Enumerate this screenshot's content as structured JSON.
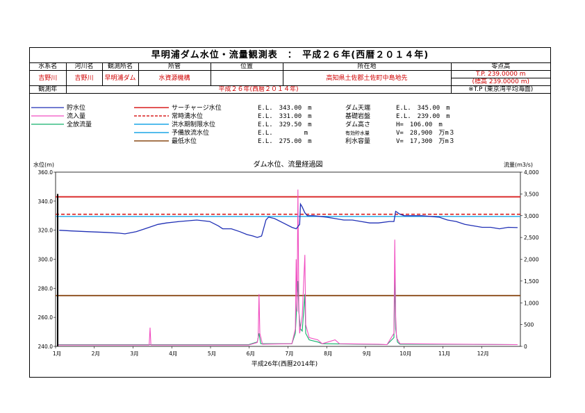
{
  "title": "早明浦ダム水位・流量観測表　：　平成２６年(西暦２０１４年)",
  "info": {
    "headers": [
      "水系名",
      "河川名",
      "観測所名",
      "所管",
      "位置",
      "所在地",
      "零点高"
    ],
    "values": [
      "吉野川",
      "吉野川",
      "早明浦ダム",
      "水資源機構",
      "",
      "高知県土佐郡土佐町中島地先",
      "T.P. 239.0000 m"
    ],
    "datum_sub": "(標高 239.0000 m)",
    "year_label": "観測年",
    "year_value": "平成２６年(西暦２０１４年)",
    "datum_note": "※T.P (東京湾平均海面)"
  },
  "legend": {
    "series": [
      "貯水位",
      "流入量",
      "全放流量"
    ],
    "levels": [
      "サーチャージ水位",
      "常時満水位",
      "洪水期制限水位",
      "予備放流水位",
      "最低水位"
    ],
    "level_values": [
      "E.L.　343.00　m",
      "E.L.　331.00　m",
      "E.L.　329.50　m",
      "E.L.　　　　　m",
      "E.L.　275.00　m"
    ],
    "specs": [
      {
        "name": "ダム天端",
        "value": "E.L.　345.00　m"
      },
      {
        "name": "基礎岩盤",
        "value": "E.L.　239.00　m"
      },
      {
        "name": "ダム高さ",
        "value": "H=　106.00　m"
      },
      {
        "name": "有効貯水量",
        "value": "V=　28,900　万m３"
      },
      {
        "name": "利水容量",
        "value": "V=　17,300　万m３"
      }
    ]
  },
  "colors": {
    "level": "#1f2fb5",
    "inflow": "#f04dc0",
    "outflow": "#11b06a",
    "surcharge": "#d81e1e",
    "normal": "#d81e1e",
    "flood": "#1aa6e6",
    "lowest": "#8a4a17"
  },
  "chart_data": {
    "type": "line",
    "title": "ダム水位、流量経過図",
    "ylabel": "水位(m)",
    "y2label": "流量(m3/s)",
    "xlabel": "平成26年(西暦2014年)",
    "months": [
      "1月",
      "2月",
      "3月",
      "4月",
      "5月",
      "6月",
      "7月",
      "8月",
      "9月",
      "10月",
      "11月",
      "12月"
    ],
    "ylim": [
      240,
      360
    ],
    "y2lim": [
      0,
      4000
    ],
    "yticks": [
      "360.0",
      "340.0",
      "320.0",
      "300.0",
      "280.0",
      "260.0",
      "240.0"
    ],
    "y2ticks": [
      "4,000",
      "3,500",
      "3,000",
      "2,500",
      "2,000",
      "1,500",
      "1,000",
      "500",
      "0"
    ],
    "levels": {
      "surcharge": 343.0,
      "normal": 331.0,
      "flood": 329.5,
      "lowest": 275.0
    },
    "water_level": [
      [
        1,
        320
      ],
      [
        15,
        319.5
      ],
      [
        35,
        319
      ],
      [
        55,
        318.5
      ],
      [
        70,
        318
      ],
      [
        77,
        317.5
      ],
      [
        90,
        319
      ],
      [
        100,
        321
      ],
      [
        115,
        324
      ],
      [
        125,
        325
      ],
      [
        140,
        326
      ],
      [
        160,
        327
      ],
      [
        175,
        326
      ],
      [
        185,
        323
      ],
      [
        190,
        321
      ],
      [
        200,
        321
      ],
      [
        210,
        319
      ],
      [
        218,
        317
      ],
      [
        225,
        316
      ],
      [
        230,
        315
      ],
      [
        235,
        316
      ],
      [
        240,
        327
      ],
      [
        243,
        329
      ],
      [
        250,
        328
      ],
      [
        260,
        325
      ],
      [
        270,
        322
      ],
      [
        275,
        321
      ],
      [
        279,
        324
      ],
      [
        280,
        338
      ],
      [
        282,
        336
      ],
      [
        285,
        332
      ],
      [
        288,
        330
      ],
      [
        295,
        330
      ],
      [
        310,
        329
      ],
      [
        320,
        328
      ],
      [
        330,
        327
      ],
      [
        340,
        327
      ],
      [
        350,
        326
      ],
      [
        360,
        325
      ],
      [
        370,
        325
      ],
      [
        383,
        326
      ],
      [
        388,
        326
      ],
      [
        390,
        333
      ],
      [
        395,
        331
      ],
      [
        400,
        330
      ],
      [
        420,
        330
      ],
      [
        440,
        329
      ],
      [
        450,
        327
      ],
      [
        460,
        326
      ],
      [
        470,
        324
      ],
      [
        480,
        323
      ],
      [
        490,
        322
      ],
      [
        500,
        322
      ],
      [
        510,
        321
      ],
      [
        520,
        322
      ],
      [
        531,
        321.8
      ]
    ],
    "inflow": [
      [
        0,
        30
      ],
      [
        60,
        30
      ],
      [
        105,
        30
      ],
      [
        106,
        430
      ],
      [
        107,
        30
      ],
      [
        220,
        30
      ],
      [
        230,
        90
      ],
      [
        231,
        200
      ],
      [
        232,
        1200
      ],
      [
        233,
        300
      ],
      [
        236,
        50
      ],
      [
        270,
        60
      ],
      [
        274,
        400
      ],
      [
        275,
        2000
      ],
      [
        276,
        800
      ],
      [
        277,
        3600
      ],
      [
        278,
        1000
      ],
      [
        279,
        300
      ],
      [
        282,
        700
      ],
      [
        285,
        2100
      ],
      [
        286,
        500
      ],
      [
        290,
        200
      ],
      [
        300,
        150
      ],
      [
        305,
        60
      ],
      [
        320,
        150
      ],
      [
        325,
        60
      ],
      [
        370,
        50
      ],
      [
        380,
        40
      ],
      [
        388,
        300
      ],
      [
        389,
        2450
      ],
      [
        390,
        700
      ],
      [
        391,
        200
      ],
      [
        395,
        60
      ],
      [
        531,
        40
      ]
    ],
    "outflow": [
      [
        0,
        40
      ],
      [
        60,
        40
      ],
      [
        105,
        40
      ],
      [
        220,
        40
      ],
      [
        230,
        100
      ],
      [
        232,
        300
      ],
      [
        234,
        60
      ],
      [
        270,
        60
      ],
      [
        274,
        300
      ],
      [
        276,
        1100
      ],
      [
        277,
        1500
      ],
      [
        278,
        800
      ],
      [
        280,
        400
      ],
      [
        282,
        350
      ],
      [
        285,
        1200
      ],
      [
        286,
        300
      ],
      [
        290,
        150
      ],
      [
        300,
        100
      ],
      [
        305,
        60
      ],
      [
        380,
        40
      ],
      [
        388,
        200
      ],
      [
        389,
        1600
      ],
      [
        390,
        400
      ],
      [
        392,
        100
      ],
      [
        395,
        50
      ],
      [
        531,
        40
      ]
    ]
  }
}
